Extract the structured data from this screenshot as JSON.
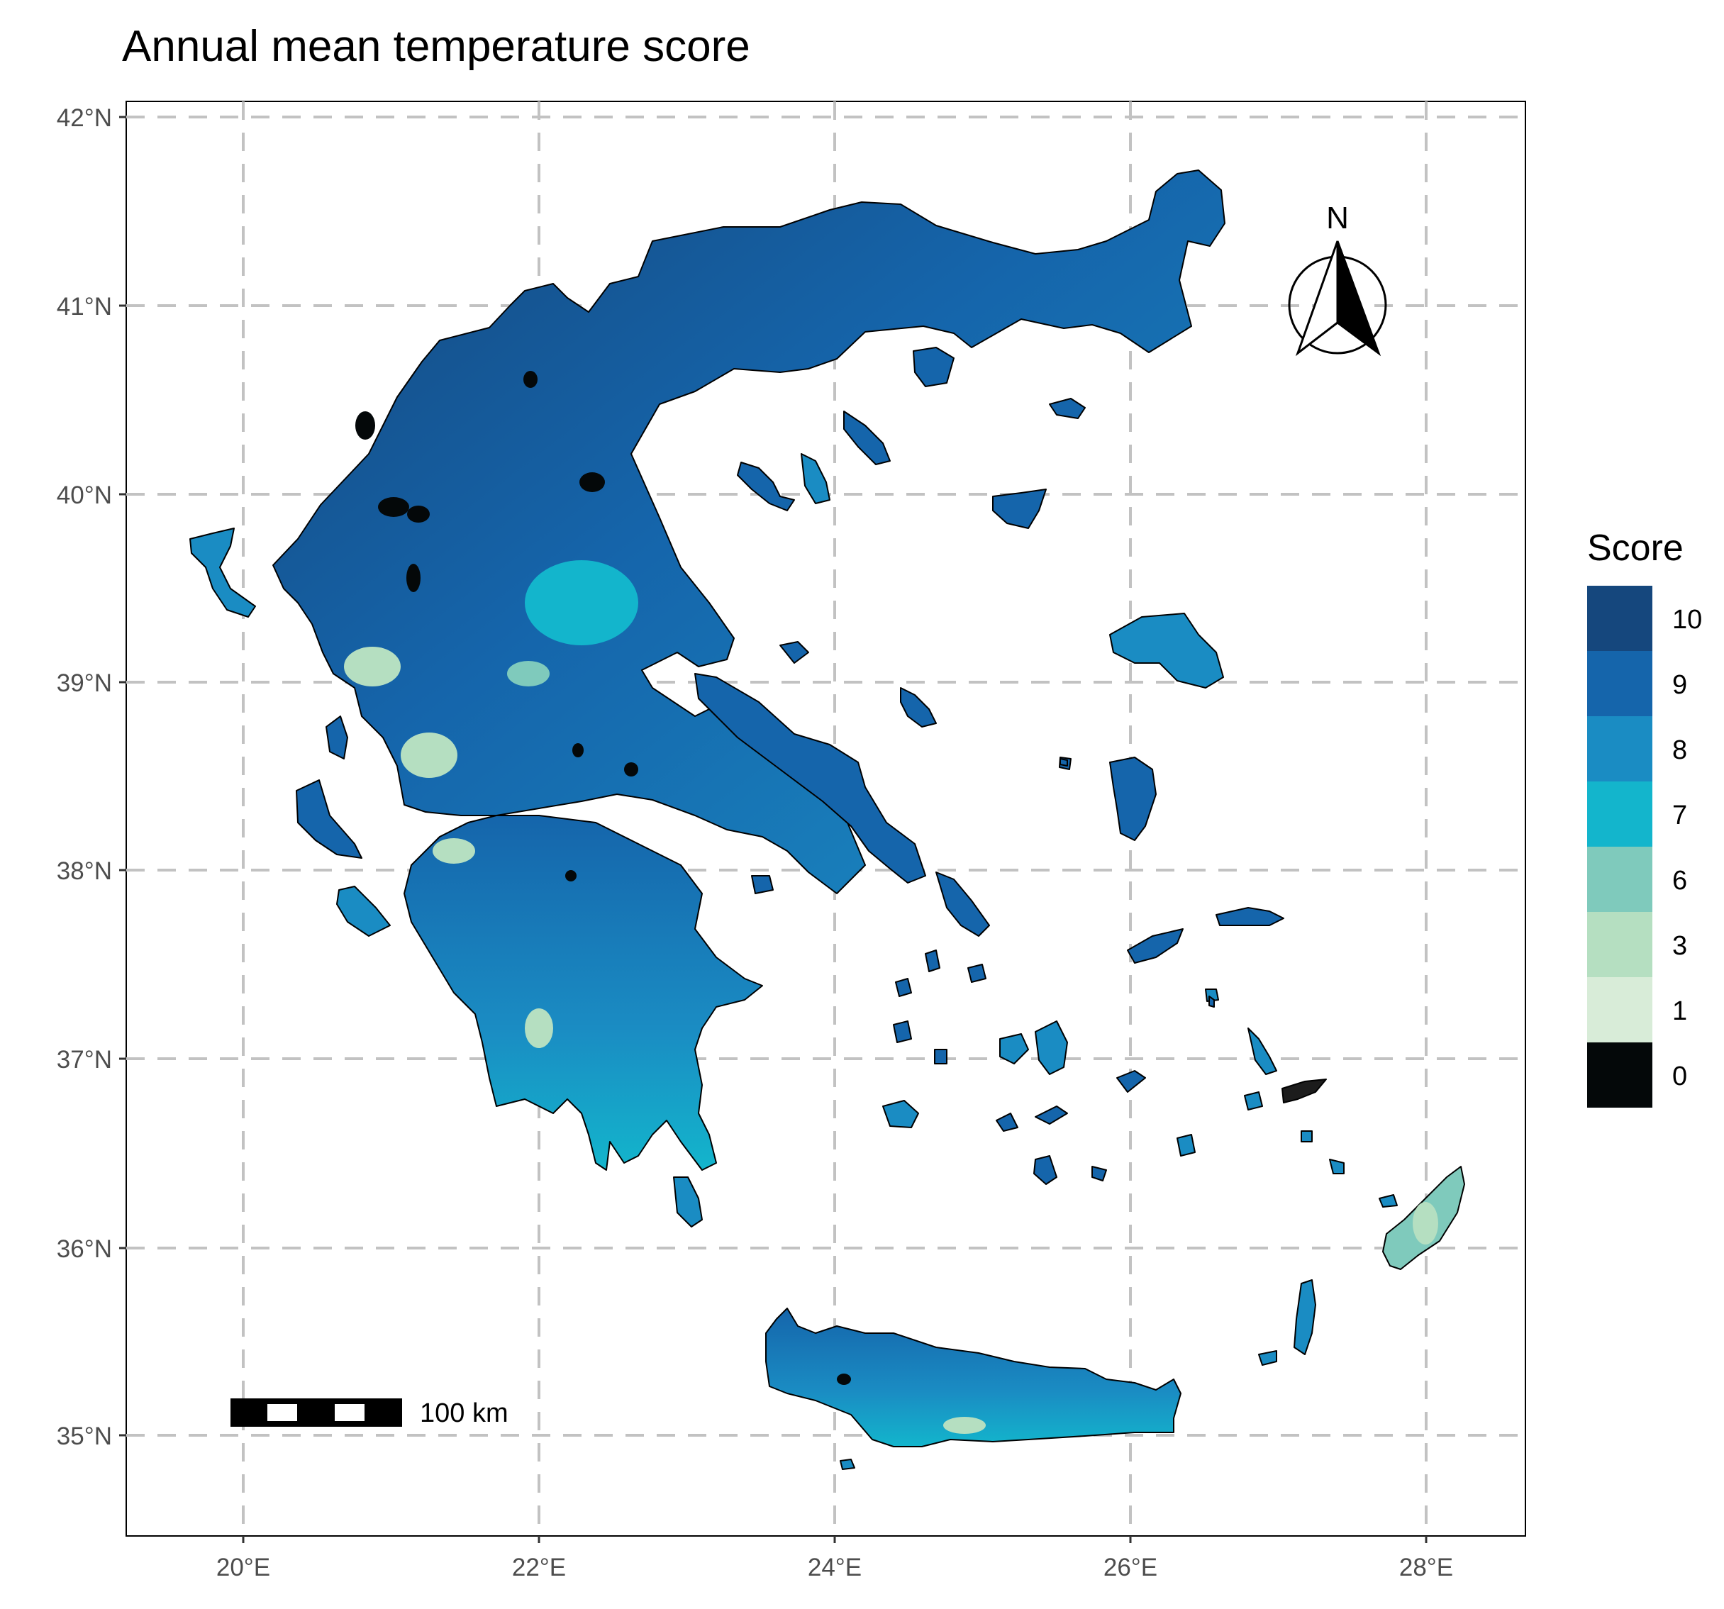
{
  "title": "Annual mean temperature score",
  "axes": {
    "lon_ticks": [
      "20°E",
      "22°E",
      "24°E",
      "26°E",
      "28°E"
    ],
    "lat_ticks": [
      "42°N",
      "41°N",
      "40°N",
      "39°N",
      "38°N",
      "37°N",
      "36°N",
      "35°N"
    ],
    "lon_range": [
      19.2,
      28.65
    ],
    "lat_range": [
      34.45,
      42.1
    ],
    "grid": "dashed"
  },
  "legend": {
    "title": "Score",
    "placement": "right",
    "entries": [
      {
        "label": "10",
        "color": "#15477d"
      },
      {
        "label": "9",
        "color": "#1565ab"
      },
      {
        "label": "8",
        "color": "#1a8cc3"
      },
      {
        "label": "7",
        "color": "#13b5cc"
      },
      {
        "label": "6",
        "color": "#7fcabc"
      },
      {
        "label": "3",
        "color": "#b5dfc1"
      },
      {
        "label": "1",
        "color": "#d8ecd8"
      },
      {
        "label": "0",
        "color": "#040809"
      }
    ]
  },
  "north_arrow": {
    "label": "N"
  },
  "scale_bar": {
    "label": "100 km"
  },
  "icons": [
    "north-arrow-icon",
    "scale-bar-icon"
  ]
}
